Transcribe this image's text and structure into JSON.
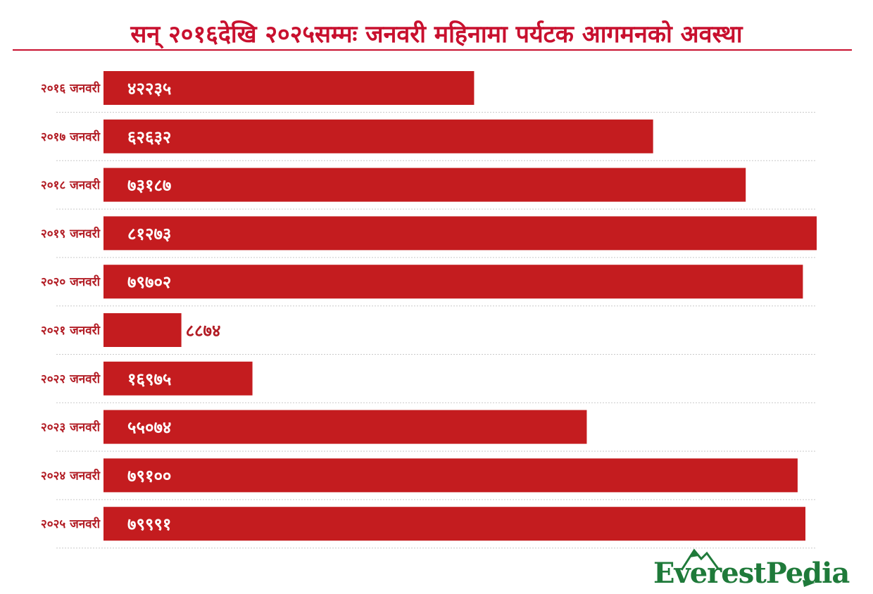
{
  "title": "सन् २०१६देखि २०२५सम्मः जनवरी महिनामा पर्यटक आगमनको अवस्था",
  "colors": {
    "bar": "#c41c1f",
    "label": "#b21c24",
    "grid": "#c9c9c9",
    "logo": "#1f7a3a"
  },
  "logo_text": "EverestPedia",
  "chart_data": {
    "type": "bar",
    "orientation": "horizontal",
    "categories": [
      "२०१६ जनवरी",
      "२०१७ जनवरी",
      "२०१८ जनवरी",
      "२०१९ जनवरी",
      "२०२० जनवरी",
      "२०२१ जनवरी",
      "२०२२ जनवरी",
      "२०२३ जनवरी",
      "२०२४ जनवरी",
      "२०२५ जनवरी"
    ],
    "values": [
      42235,
      62632,
      73187,
      81273,
      79702,
      8874,
      16975,
      55074,
      79100,
      79991
    ],
    "value_labels": [
      "४२२३५",
      "६२६३२",
      "७३१८७",
      "८१२७३",
      "७९७०२",
      "८८७४",
      "१६९७५",
      "५५०७४",
      "७९१००",
      "७९९९१"
    ],
    "grid": false
  }
}
